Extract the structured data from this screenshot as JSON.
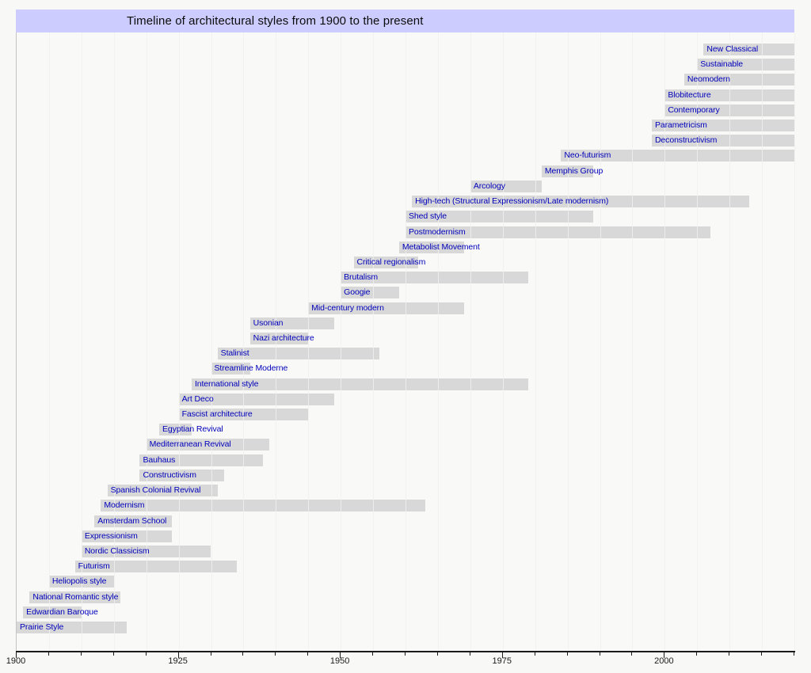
{
  "title": "Timeline of architectural styles from 1900 to the present",
  "colors": {
    "header_bg": "#ccccff",
    "canvas_bg": "#f8f8f6",
    "plot_bg": "#f9f9f7",
    "bar_color": "#d8d8d8",
    "label_color": "#0000bb",
    "gridline_color": "#e4e4e2",
    "axis_color": "#1a1a1a"
  },
  "chart_data": {
    "type": "timeline",
    "title": "Timeline of architectural styles from 1900 to the present",
    "xlabel": "",
    "ylabel": "",
    "x_axis": {
      "min": 1900,
      "max": 2020,
      "minor_tick_step": 5,
      "major_ticks": [
        1900,
        1925,
        1950,
        1975,
        2000
      ],
      "grid": true
    },
    "styles": [
      {
        "label": "New Classical",
        "start": 2006,
        "end": 2020,
        "to_present": true
      },
      {
        "label": "Sustainable",
        "start": 2005,
        "end": 2020,
        "to_present": true
      },
      {
        "label": "Neomodern",
        "start": 2003,
        "end": 2020,
        "to_present": true
      },
      {
        "label": "Blobitecture",
        "start": 2000,
        "end": 2020,
        "to_present": true
      },
      {
        "label": "Contemporary",
        "start": 2000,
        "end": 2020,
        "to_present": true
      },
      {
        "label": "Parametricism",
        "start": 1998,
        "end": 2020,
        "to_present": true
      },
      {
        "label": "Deconstructivism",
        "start": 1998,
        "end": 2020,
        "to_present": true
      },
      {
        "label": "Neo-futurism",
        "start": 1984,
        "end": 2020,
        "to_present": true
      },
      {
        "label": "Memphis Group",
        "start": 1981,
        "end": 1989,
        "to_present": false
      },
      {
        "label": "Arcology",
        "start": 1970,
        "end": 1981,
        "to_present": false
      },
      {
        "label": "High-tech (Structural Expressionism/Late modernism)",
        "start": 1961,
        "end": 2013,
        "to_present": false
      },
      {
        "label": "Shed style",
        "start": 1960,
        "end": 1989,
        "to_present": false
      },
      {
        "label": "Postmodernism",
        "start": 1960,
        "end": 2007,
        "to_present": false
      },
      {
        "label": "Metabolist Movement",
        "start": 1959,
        "end": 1969,
        "to_present": false
      },
      {
        "label": "Critical regionalism",
        "start": 1952,
        "end": 1962,
        "to_present": false
      },
      {
        "label": "Brutalism",
        "start": 1950,
        "end": 1979,
        "to_present": false
      },
      {
        "label": "Googie",
        "start": 1950,
        "end": 1959,
        "to_present": false
      },
      {
        "label": "Mid-century modern",
        "start": 1945,
        "end": 1969,
        "to_present": false
      },
      {
        "label": "Usonian",
        "start": 1936,
        "end": 1949,
        "to_present": false
      },
      {
        "label": "Nazi architecture",
        "start": 1936,
        "end": 1945,
        "to_present": false
      },
      {
        "label": "Stalinist",
        "start": 1931,
        "end": 1956,
        "to_present": false
      },
      {
        "label": "Streamline Moderne",
        "start": 1930,
        "end": 1936,
        "to_present": false
      },
      {
        "label": "International style",
        "start": 1927,
        "end": 1979,
        "to_present": false
      },
      {
        "label": "Art Deco",
        "start": 1925,
        "end": 1949,
        "to_present": false
      },
      {
        "label": "Fascist architecture",
        "start": 1925,
        "end": 1945,
        "to_present": false
      },
      {
        "label": "Egyptian Revival",
        "start": 1922,
        "end": 1927,
        "to_present": false
      },
      {
        "label": "Mediterranean Revival",
        "start": 1920,
        "end": 1939,
        "to_present": false
      },
      {
        "label": "Bauhaus",
        "start": 1919,
        "end": 1938,
        "to_present": false
      },
      {
        "label": "Constructivism",
        "start": 1919,
        "end": 1932,
        "to_present": false
      },
      {
        "label": "Spanish Colonial Revival",
        "start": 1914,
        "end": 1931,
        "to_present": false
      },
      {
        "label": "Modernism",
        "start": 1913,
        "end": 1963,
        "to_present": false
      },
      {
        "label": "Amsterdam School",
        "start": 1912,
        "end": 1924,
        "to_present": false
      },
      {
        "label": "Expressionism",
        "start": 1910,
        "end": 1924,
        "to_present": false
      },
      {
        "label": "Nordic Classicism",
        "start": 1910,
        "end": 1930,
        "to_present": false
      },
      {
        "label": "Futurism",
        "start": 1909,
        "end": 1934,
        "to_present": false
      },
      {
        "label": "Heliopolis style",
        "start": 1905,
        "end": 1915,
        "to_present": false
      },
      {
        "label": "National Romantic style",
        "start": 1902,
        "end": 1916,
        "to_present": false
      },
      {
        "label": "Edwardian Baroque",
        "start": 1901,
        "end": 1910,
        "to_present": false
      },
      {
        "label": "Prairie Style",
        "start": 1900,
        "end": 1917,
        "to_present": false
      }
    ]
  }
}
